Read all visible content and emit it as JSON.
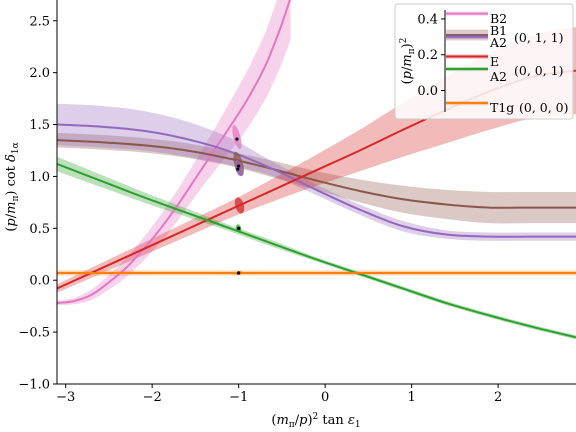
{
  "chart_data": {
    "type": "line",
    "xlabel": "(m_π/p)² tan ε₁",
    "ylabel": "(p/m_π) cot δ_{1α}",
    "xlim": [
      -3.1,
      2.9
    ],
    "ylim": [
      -1.0,
      2.7
    ],
    "x_ticks": [
      -3,
      -2,
      -1,
      0,
      1,
      2
    ],
    "x_tick_labels": [
      "−3",
      "−2",
      "−1",
      "0",
      "1",
      "2"
    ],
    "y_ticks": [
      -1.0,
      -0.5,
      0.0,
      0.5,
      1.0,
      1.5,
      2.0,
      2.5
    ],
    "y_tick_labels": [
      "−1.0",
      "−0.5",
      "0.0",
      "0.5",
      "1.0",
      "1.5",
      "2.0",
      "2.5"
    ],
    "grid": false,
    "series": [
      {
        "name": "B2",
        "color": "#e377c2",
        "x": [
          -3.1,
          -2.9,
          -2.7,
          -2.5,
          -2.3,
          -2.1,
          -1.9,
          -1.7,
          -1.5,
          -1.3,
          -1.1,
          -0.9,
          -0.7,
          -0.6,
          -0.5,
          -0.4
        ],
        "y": [
          -0.22,
          -0.2,
          -0.14,
          -0.02,
          0.12,
          0.3,
          0.5,
          0.73,
          0.98,
          1.23,
          1.48,
          1.74,
          2.05,
          2.25,
          2.47,
          2.72
        ],
        "band_width": [
          0.02,
          0.03,
          0.05,
          0.07,
          0.09,
          0.11,
          0.13,
          0.15,
          0.17,
          0.2,
          0.24,
          0.28,
          0.32,
          0.35,
          0.38,
          0.41
        ]
      },
      {
        "name": "B1",
        "color": "#8c564b",
        "x": [
          -3.1,
          -2.6,
          -2.1,
          -1.6,
          -1.1,
          -0.6,
          -0.1,
          0.4,
          0.9,
          1.4,
          1.9,
          2.4,
          2.9
        ],
        "y": [
          1.35,
          1.33,
          1.3,
          1.25,
          1.17,
          1.07,
          0.96,
          0.86,
          0.78,
          0.73,
          0.7,
          0.7,
          0.7
        ],
        "band_width": [
          0.07,
          0.07,
          0.07,
          0.07,
          0.07,
          0.08,
          0.09,
          0.11,
          0.13,
          0.14,
          0.15,
          0.15,
          0.15
        ]
      },
      {
        "name": "A2",
        "color": "#9467bd",
        "x": [
          -3.1,
          -2.6,
          -2.1,
          -1.6,
          -1.1,
          -0.6,
          -0.1,
          0.4,
          0.9,
          1.4,
          1.9,
          2.4,
          2.9
        ],
        "y": [
          1.5,
          1.48,
          1.44,
          1.36,
          1.24,
          1.07,
          0.87,
          0.68,
          0.52,
          0.44,
          0.42,
          0.42,
          0.42
        ],
        "band_width": [
          0.2,
          0.2,
          0.19,
          0.17,
          0.13,
          0.07,
          0.05,
          0.05,
          0.05,
          0.04,
          0.04,
          0.04,
          0.04
        ]
      },
      {
        "name": "E",
        "color": "#d62728",
        "x": [
          -3.1,
          -2.6,
          -2.1,
          -1.6,
          -1.1,
          -0.6,
          -0.1,
          0.4,
          0.9,
          1.4,
          1.9,
          2.4,
          2.9
        ],
        "y": [
          -0.08,
          0.11,
          0.3,
          0.49,
          0.68,
          0.87,
          1.06,
          1.25,
          1.45,
          1.64,
          1.82,
          1.96,
          2.02
        ],
        "band_width": [
          0.04,
          0.05,
          0.06,
          0.07,
          0.08,
          0.11,
          0.15,
          0.2,
          0.26,
          0.32,
          0.37,
          0.4,
          0.42
        ]
      },
      {
        "name": "A2",
        "color": "#2ca02c",
        "x": [
          -3.1,
          -2.6,
          -2.1,
          -1.6,
          -1.1,
          -0.6,
          -0.1,
          0.4,
          0.9,
          1.4,
          1.9,
          2.4,
          2.9
        ],
        "y": [
          1.12,
          0.96,
          0.8,
          0.65,
          0.5,
          0.35,
          0.2,
          0.06,
          -0.08,
          -0.22,
          -0.34,
          -0.45,
          -0.55
        ],
        "band_width": [
          0.07,
          0.06,
          0.05,
          0.04,
          0.03,
          0.03,
          0.02,
          0.02,
          0.02,
          0.02,
          0.02,
          0.02,
          0.02
        ]
      },
      {
        "name": "T1g",
        "color": "#ff7f0e",
        "x": [
          -3.1,
          2.9
        ],
        "y": [
          0.07,
          0.07
        ],
        "band_width": [
          0.025,
          0.025
        ]
      }
    ],
    "points": [
      {
        "x": -1.02,
        "y": 1.36
      },
      {
        "x": -1.0,
        "y": 1.1
      },
      {
        "x": -1.01,
        "y": 1.07
      },
      {
        "x": -1.0,
        "y": 0.5
      },
      {
        "x": -1.0,
        "y": 0.07
      }
    ],
    "ellipses": [
      {
        "x": -1.02,
        "y": 1.38,
        "rx": 0.04,
        "ry": 0.12,
        "color": "#e377c2"
      },
      {
        "x": -1.0,
        "y": 1.12,
        "rx": 0.05,
        "ry": 0.12,
        "color": "#8c564b"
      },
      {
        "x": -1.0,
        "y": 1.08,
        "rx": 0.04,
        "ry": 0.08,
        "color": "#9467bd"
      },
      {
        "x": -0.99,
        "y": 0.72,
        "rx": 0.05,
        "ry": 0.08,
        "color": "#d62728"
      },
      {
        "x": -1.0,
        "y": 0.5,
        "rx": 0.03,
        "ry": 0.04,
        "color": "#2ca02c"
      },
      {
        "x": -1.0,
        "y": 0.07,
        "rx": 0.04,
        "ry": 0.02,
        "color": "#ff7f0e"
      }
    ],
    "legend": {
      "placement": "top-right",
      "inset": {
        "ylabel": "(p/m_π)²",
        "ylim": [
          -0.12,
          0.45
        ],
        "ticks": [
          0.0,
          0.2,
          0.4
        ],
        "tick_labels": [
          "0.0",
          "0.2",
          "0.4"
        ],
        "bands": [
          {
            "y": 0.43,
            "color": "#e377c2"
          },
          {
            "y": 0.31,
            "color": "#8c564b",
            "width": 0.03
          },
          {
            "y": 0.3,
            "color": "#9467bd"
          },
          {
            "y": 0.19,
            "color": "#d62728"
          },
          {
            "y": 0.12,
            "color": "#2ca02c"
          },
          {
            "y": -0.07,
            "color": "#ff7f0e"
          }
        ]
      },
      "entries": [
        {
          "label": "B2",
          "color": "#e377c2"
        },
        {
          "label": "B1",
          "color": "#8c564b"
        },
        {
          "label": "A2",
          "color": "#9467bd"
        },
        {
          "label": "E",
          "color": "#d62728"
        },
        {
          "label": "A2",
          "color": "#2ca02c"
        },
        {
          "label": "T1g",
          "color": "#ff7f0e"
        }
      ],
      "group_labels": [
        {
          "text": "(0, 1, 1)",
          "after_entry": 1
        },
        {
          "text": "(0, 0, 1)",
          "after_entry": 3
        },
        {
          "text": "(0, 0, 0)",
          "after_entry": 5
        }
      ]
    }
  }
}
